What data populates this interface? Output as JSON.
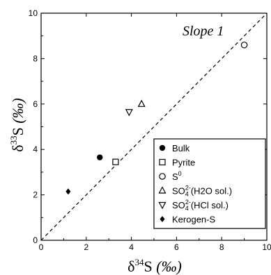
{
  "chart_data": {
    "type": "scatter",
    "xlabel": "δ34S (‰)",
    "ylabel": "δ33S (‰)",
    "xlabel_parts": {
      "delta": "δ",
      "mass": "34",
      "element": "S",
      "unit": "(‰)"
    },
    "ylabel_parts": {
      "delta": "δ",
      "mass": "33",
      "element": "S",
      "unit": "(‰)"
    },
    "xlim": [
      0,
      10
    ],
    "ylim": [
      0,
      10
    ],
    "xticks": [
      "0",
      "2",
      "4",
      "6",
      "8",
      "10"
    ],
    "yticks": [
      "0",
      "2",
      "4",
      "6",
      "8",
      "10"
    ],
    "grid": false,
    "legend_position": "bottom-right",
    "annotation": {
      "text": "Slope 1"
    },
    "reference_line": {
      "x": [
        0,
        10
      ],
      "y": [
        0,
        10
      ],
      "style": "dashed"
    },
    "series": [
      {
        "name": "Bulk",
        "marker": "circle-filled",
        "points": [
          [
            2.6,
            3.65
          ]
        ]
      },
      {
        "name": "Pyrite",
        "marker": "square-open",
        "points": [
          [
            3.3,
            3.45
          ]
        ]
      },
      {
        "name": "S0",
        "label_base": "S",
        "label_sup": "0",
        "label_tail": "",
        "marker": "circle-open",
        "points": [
          [
            9.0,
            8.6
          ]
        ]
      },
      {
        "name": "SO42-(H2O sol.)",
        "label_base": "SO",
        "label_sub": "4",
        "label_sup": "2-",
        "label_tail": "(H2O sol.)",
        "marker": "triangle-up-open",
        "points": [
          [
            4.45,
            6.0
          ]
        ]
      },
      {
        "name": "SO42-(HCl sol.)",
        "label_base": "SO",
        "label_sub": "4",
        "label_sup": "2-",
        "label_tail": "(HCl sol.)",
        "marker": "triangle-down-open",
        "points": [
          [
            3.9,
            5.65
          ]
        ]
      },
      {
        "name": "Kerogen-S",
        "marker": "diamond-filled",
        "points": [
          [
            1.2,
            2.15
          ]
        ]
      }
    ]
  },
  "colors": {
    "ink": "#000000",
    "background": "#ffffff"
  }
}
